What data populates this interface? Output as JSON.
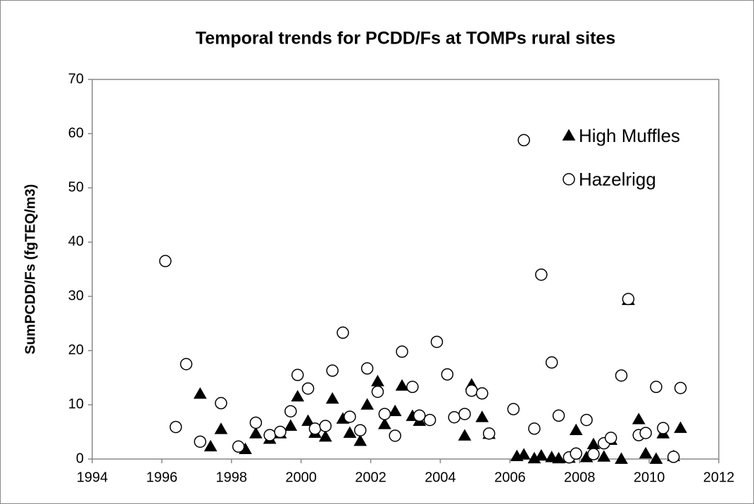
{
  "chart_data": {
    "type": "scatter",
    "title": "Temporal trends for PCDD/Fs at TOMPs rural sites",
    "y_label": "SumPCDD/Fs (fgTEQ/m3)",
    "xlim": [
      1994,
      2012
    ],
    "xticks": [
      1994,
      1996,
      1998,
      2000,
      2002,
      2004,
      2006,
      2008,
      2010,
      2012
    ],
    "ylim": [
      0,
      70
    ],
    "yticks": [
      0,
      10,
      20,
      30,
      40,
      50,
      60,
      70
    ],
    "grid": false,
    "legend": "upper right",
    "series": [
      {
        "name": "High Muffles",
        "color": "#000000",
        "marker": "triangle",
        "x": [
          1997.1,
          1997.4,
          1997.7,
          1998.4,
          1998.7,
          1999.1,
          1999.4,
          1999.7,
          1999.9,
          2000.2,
          2000.4,
          2000.7,
          2000.9,
          2001.2,
          2001.4,
          2001.7,
          2001.9,
          2002.2,
          2002.4,
          2002.7,
          2002.9,
          2003.2,
          2003.4,
          2004.7,
          2004.9,
          2005.2,
          2005.4,
          2006.2,
          2006.4,
          2006.7,
          2006.9,
          2007.2,
          2007.4,
          2007.7,
          2007.9,
          2008.2,
          2008.4,
          2008.7,
          2008.9,
          2009.2,
          2009.4,
          2009.7,
          2009.9,
          2010.2,
          2010.4,
          2010.7,
          2010.9
        ],
        "values": [
          12,
          2.3,
          5.5,
          1.8,
          4.7,
          3.7,
          4.7,
          6.1,
          11.5,
          7,
          4.8,
          4.1,
          11.1,
          7.4,
          4.8,
          3.3,
          10,
          14.3,
          6.4,
          8.8,
          13.5,
          7.9,
          7,
          4.3,
          13.7,
          7.7,
          4.6,
          0.5,
          0.8,
          0.1,
          0.6,
          0.3,
          0.1,
          0.2,
          5.3,
          0.3,
          2.7,
          0.4,
          3.5,
          0,
          29.3,
          7.3,
          1,
          0,
          4.7,
          0.5,
          5.7
        ]
      },
      {
        "name": "Hazelrigg",
        "color": "#ffffff",
        "marker": "circle",
        "x": [
          1996.1,
          1996.4,
          1996.7,
          1997.1,
          1997.7,
          1998.2,
          1998.7,
          1999.1,
          1999.4,
          1999.7,
          1999.9,
          2000.2,
          2000.4,
          2000.7,
          2000.9,
          2001.2,
          2001.4,
          2001.7,
          2001.9,
          2002.2,
          2002.4,
          2002.7,
          2002.9,
          2003.2,
          2003.4,
          2003.7,
          2003.9,
          2004.2,
          2004.4,
          2004.7,
          2004.9,
          2005.2,
          2005.4,
          2006.1,
          2006.4,
          2006.7,
          2006.9,
          2007.2,
          2007.4,
          2007.7,
          2007.9,
          2008.2,
          2008.4,
          2008.7,
          2008.9,
          2009.2,
          2009.4,
          2009.7,
          2009.9,
          2010.2,
          2010.4,
          2010.7,
          2010.9
        ],
        "values": [
          36.5,
          5.9,
          17.5,
          3.2,
          10.3,
          2.3,
          6.7,
          4.4,
          5,
          8.8,
          15.5,
          13,
          5.6,
          6.1,
          16.3,
          23.3,
          7.8,
          5.3,
          16.7,
          12.4,
          8.3,
          4.3,
          19.8,
          13.3,
          8,
          7.2,
          21.6,
          15.6,
          7.7,
          8.3,
          12.6,
          12.1,
          4.7,
          9.2,
          58.8,
          5.6,
          34,
          17.8,
          8,
          0.3,
          1,
          7.2,
          0.9,
          2.9,
          3.9,
          15.4,
          29.5,
          4.4,
          4.8,
          13.3,
          5.7,
          0.4,
          13.1
        ]
      }
    ]
  }
}
